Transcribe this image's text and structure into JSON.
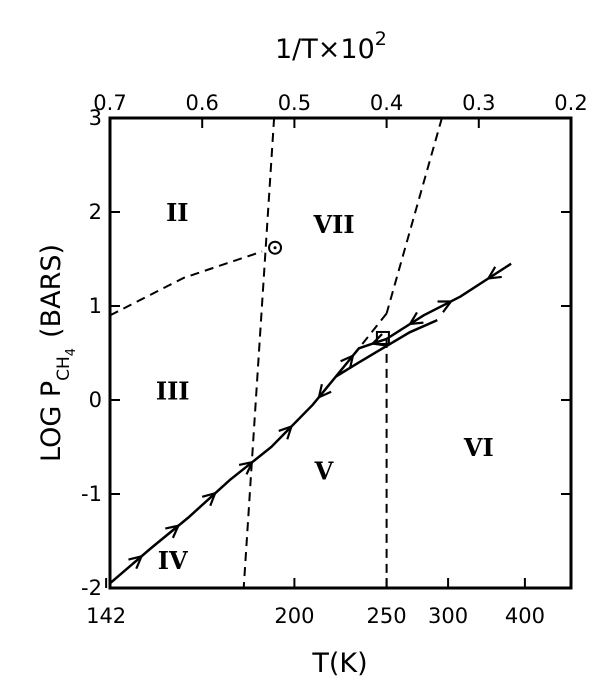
{
  "chart_data": {
    "type": "line",
    "title": "",
    "xlabel": "T(K)",
    "ylabel": "LOG P",
    "ylabel_sub": "CH",
    "ylabel_sub2": "4",
    "ylabel_unit": "(BARS)",
    "x2label": "1/T×10",
    "x2label_exp": "2",
    "x_scale": "reciprocal",
    "invT_range": [
      0.7,
      0.2
    ],
    "ylim": [
      -2,
      3
    ],
    "x_ticks": [
      {
        "label": "142",
        "invT": 0.7042
      },
      {
        "label": "200",
        "invT": 0.5
      },
      {
        "label": "250",
        "invT": 0.4
      },
      {
        "label": "300",
        "invT": 0.3333
      },
      {
        "label": "400",
        "invT": 0.25
      }
    ],
    "x2_ticks": [
      "0.7",
      "0.6",
      "0.5",
      "0.4",
      "0.3",
      "0.2"
    ],
    "x2_tick_values": [
      0.7,
      0.6,
      0.5,
      0.4,
      0.3,
      0.2
    ],
    "y_ticks": [
      "-2",
      "-1",
      "0",
      "1",
      "2",
      "3"
    ],
    "y_tick_values": [
      -2,
      -1,
      0,
      1,
      2,
      3
    ],
    "measured_path": [
      [
        0.7,
        -1.95
      ],
      [
        0.656,
        -1.58
      ],
      [
        0.615,
        -1.25
      ],
      [
        0.57,
        -0.85
      ],
      [
        0.525,
        -0.5
      ],
      [
        0.48,
        -0.05
      ],
      [
        0.455,
        0.25
      ],
      [
        0.43,
        0.55
      ],
      [
        0.4,
        0.65
      ],
      [
        0.36,
        0.9
      ],
      [
        0.32,
        1.1
      ],
      [
        0.265,
        1.45
      ]
    ],
    "branch_path": [
      [
        0.455,
        0.25
      ],
      [
        0.43,
        0.4
      ],
      [
        0.375,
        0.72
      ],
      [
        0.345,
        0.85
      ]
    ],
    "measured_arrows": [
      {
        "invT": 0.67,
        "dir": 1
      },
      {
        "invT": 0.63,
        "dir": 1
      },
      {
        "invT": 0.59,
        "dir": 1
      },
      {
        "invT": 0.55,
        "dir": 1
      },
      {
        "invT": 0.507,
        "dir": 1
      },
      {
        "invT": 0.47,
        "dir": -1
      },
      {
        "invT": 0.44,
        "dir": 1
      },
      {
        "invT": 0.41,
        "dir": -1
      },
      {
        "invT": 0.37,
        "dir": -1
      },
      {
        "invT": 0.335,
        "dir": 1
      },
      {
        "invT": 0.285,
        "dir": -1
      }
    ],
    "boundaries": [
      {
        "name": "II-III",
        "points": [
          [
            0.7,
            0.9
          ],
          [
            0.62,
            1.3
          ],
          [
            0.535,
            1.58
          ]
        ]
      },
      {
        "name": "VII-left",
        "points": [
          [
            0.522,
            3.0
          ],
          [
            0.555,
            -2.0
          ]
        ]
      },
      {
        "name": "VII-right",
        "points": [
          [
            0.34,
            3.0
          ],
          [
            0.4,
            0.92
          ]
        ]
      },
      {
        "name": "V-VI",
        "points": [
          [
            0.4,
            0.65
          ],
          [
            0.4,
            -2.0
          ]
        ]
      },
      {
        "name": "dashed-link",
        "points": [
          [
            0.4,
            0.92
          ],
          [
            0.43,
            0.55
          ]
        ]
      }
    ],
    "open_points": [
      {
        "invT": 0.521,
        "y": 1.62,
        "shape": "circle"
      },
      {
        "invT": 0.404,
        "y": 0.66,
        "shape": "square"
      }
    ],
    "regions": [
      {
        "label": "II",
        "invT": 0.627,
        "y": 2.0
      },
      {
        "label": "VII",
        "invT": 0.457,
        "y": 1.87
      },
      {
        "label": "III",
        "invT": 0.632,
        "y": 0.1
      },
      {
        "label": "V",
        "invT": 0.468,
        "y": -0.75
      },
      {
        "label": "VI",
        "invT": 0.3,
        "y": -0.5
      },
      {
        "label": "IV",
        "invT": 0.632,
        "y": -1.7
      }
    ]
  }
}
